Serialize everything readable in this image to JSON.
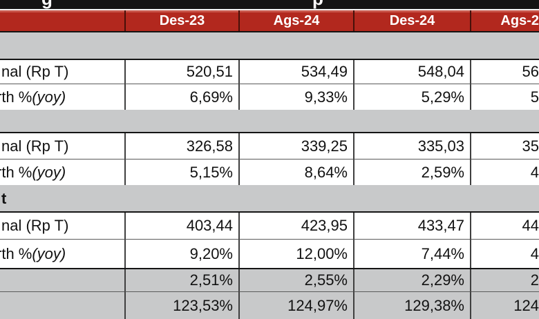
{
  "title_bar": {
    "glyphs": [
      "g",
      "p"
    ]
  },
  "table": {
    "column_headers": [
      "Des-23",
      "Ags-24",
      "Des-24",
      "Ags-2"
    ],
    "sections": [
      {
        "header_label": "",
        "nominal": {
          "label_prefix": "nal (Rp T)",
          "label_italic": "",
          "values": [
            "520,51",
            "534,49",
            "548,04",
            "56"
          ]
        },
        "growth": {
          "label_prefix": "rth % ",
          "label_italic": "(yoy)",
          "values": [
            "6,69%",
            "9,33%",
            "5,29%",
            "5"
          ]
        }
      },
      {
        "header_label": "",
        "nominal": {
          "label_prefix": "nal (Rp T)",
          "label_italic": "",
          "values": [
            "326,58",
            "339,25",
            "335,03",
            "35"
          ]
        },
        "growth": {
          "label_prefix": "rth % ",
          "label_italic": "(yoy)",
          "values": [
            "5,15%",
            "8,64%",
            "2,59%",
            "4"
          ]
        }
      },
      {
        "header_label": "t",
        "nominal": {
          "label_prefix": "nal (Rp T)",
          "label_italic": "",
          "values": [
            "403,44",
            "423,95",
            "433,47",
            "44"
          ]
        },
        "growth": {
          "label_prefix": "rth % ",
          "label_italic": "(yoy)",
          "values": [
            "9,20%",
            "12,00%",
            "7,44%",
            "4"
          ]
        }
      }
    ],
    "summary_rows": [
      {
        "values": [
          "2,51%",
          "2,55%",
          "2,29%",
          "2"
        ]
      },
      {
        "values": [
          "123,53%",
          "124,97%",
          "129,38%",
          "124"
        ]
      }
    ]
  },
  "colors": {
    "header_red": "#B2281E",
    "header_red_highlight": "#C9564A",
    "band_gray": "#C8C9CA",
    "grid_line": "#3F3F3F",
    "section_border": "#141414",
    "header_text": "#FFFFFF",
    "body_text": "#111111",
    "titlebar_black": "#141414"
  }
}
